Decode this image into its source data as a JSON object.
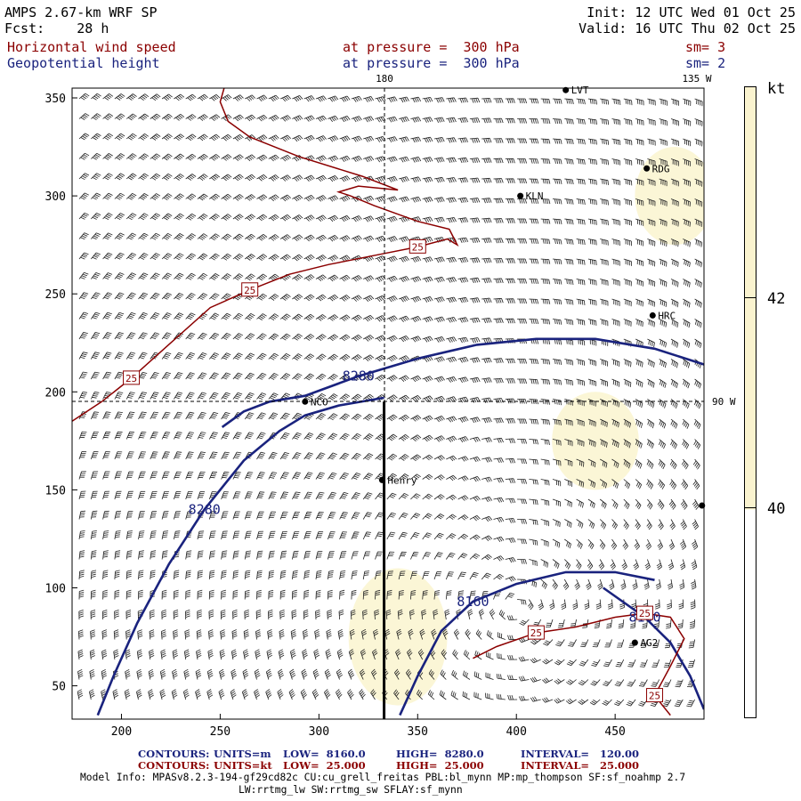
{
  "header": {
    "model": "AMPS 2.67-km WRF SP",
    "forecast": "Fcst:    28 h",
    "init": "Init: 12 UTC Wed 01 Oct 25",
    "valid": "Valid: 16 UTC Thu 02 Oct 25",
    "field1": "Horizontal wind speed",
    "field1_level": "at pressure =  300 hPa",
    "field1_sm": "sm= 3",
    "field2": "Geopotential height",
    "field2_level": "at pressure =  300 hPa",
    "field2_sm": "sm= 2"
  },
  "colors": {
    "wind_contour": "#8b0000",
    "height_contour": "#1a237e",
    "shade": "#fbf6d6",
    "colorbar_fill": "#faf3cf"
  },
  "chart_data": {
    "type": "contour",
    "xlim": [
      175,
      495
    ],
    "ylim": [
      33,
      355
    ],
    "x_ticks": [
      200,
      250,
      300,
      350,
      400,
      450
    ],
    "y_ticks": [
      50,
      100,
      150,
      200,
      250,
      300,
      350
    ],
    "lon_labels": {
      "top_180": "180",
      "top_135w": "135 W",
      "right_90w": "90 W"
    },
    "colorbar": {
      "unit": "kt",
      "labels": [
        "42",
        "40"
      ]
    },
    "stations": [
      {
        "name": "LVT",
        "x": 425,
        "y": 354
      },
      {
        "name": "RDG",
        "x": 466,
        "y": 314
      },
      {
        "name": "KLN",
        "x": 402,
        "y": 300
      },
      {
        "name": "HRC",
        "x": 469,
        "y": 239
      },
      {
        "name": "NCO",
        "x": 293,
        "y": 195
      },
      {
        "name": "Henry",
        "x": 332,
        "y": 155
      },
      {
        "name": "AG2",
        "x": 460,
        "y": 72
      },
      {
        "name": "",
        "x": 494,
        "y": 142
      }
    ],
    "section_line": {
      "x": [
        333,
        333
      ],
      "y": [
        195,
        33
      ]
    },
    "height_contours": [
      {
        "level": 8280,
        "label": "8280",
        "points": [
          [
            251,
            182
          ],
          [
            262,
            190
          ],
          [
            275,
            195
          ],
          [
            293,
            198
          ],
          [
            320,
            208
          ],
          [
            350,
            217
          ],
          [
            380,
            224
          ],
          [
            410,
            227
          ],
          [
            440,
            227
          ],
          [
            470,
            222
          ],
          [
            495,
            214
          ]
        ]
      },
      {
        "level": 8280,
        "label": "8280",
        "points": [
          [
            188,
            35
          ],
          [
            196,
            55
          ],
          [
            208,
            82
          ],
          [
            224,
            112
          ],
          [
            242,
            140
          ],
          [
            262,
            165
          ],
          [
            280,
            180
          ],
          [
            293,
            188
          ],
          [
            310,
            193
          ],
          [
            333,
            197
          ]
        ]
      },
      {
        "level": 8160,
        "label": "8160",
        "points": [
          [
            341,
            35
          ],
          [
            350,
            55
          ],
          [
            362,
            78
          ],
          [
            378,
            93
          ],
          [
            400,
            102
          ],
          [
            425,
            108
          ],
          [
            450,
            108
          ],
          [
            470,
            104
          ]
        ]
      },
      {
        "level": 8160,
        "label": "8160",
        "points": [
          [
            444,
            100
          ],
          [
            465,
            85
          ],
          [
            478,
            72
          ],
          [
            488,
            55
          ],
          [
            495,
            38
          ]
        ]
      }
    ],
    "wind_contours": [
      {
        "level": 25,
        "label": "25",
        "points": [
          [
            175,
            185
          ],
          [
            190,
            195
          ],
          [
            205,
            207
          ],
          [
            225,
            225
          ],
          [
            245,
            243
          ],
          [
            265,
            252
          ],
          [
            285,
            260
          ],
          [
            305,
            265
          ],
          [
            330,
            270
          ],
          [
            350,
            274
          ],
          [
            365,
            278
          ],
          [
            370,
            275
          ],
          [
            366,
            283
          ],
          [
            350,
            287
          ],
          [
            328,
            295
          ],
          [
            316,
            300
          ],
          [
            310,
            302
          ],
          [
            320,
            305
          ],
          [
            340,
            303
          ],
          [
            322,
            310
          ],
          [
            290,
            320
          ],
          [
            265,
            330
          ],
          [
            254,
            338
          ],
          [
            250,
            348
          ],
          [
            252,
            355
          ]
        ]
      },
      {
        "level": 25,
        "label": "25",
        "points": [
          [
            378,
            64
          ],
          [
            390,
            70
          ],
          [
            410,
            77
          ],
          [
            430,
            80
          ],
          [
            450,
            85
          ],
          [
            465,
            87
          ],
          [
            478,
            85
          ],
          [
            485,
            74
          ],
          [
            478,
            60
          ],
          [
            470,
            45
          ],
          [
            478,
            35
          ]
        ]
      }
    ],
    "shaded_regions": [
      {
        "level": 40,
        "center": [
          340,
          75
        ],
        "radius": [
          25,
          35
        ]
      },
      {
        "level": 40,
        "center": [
          440,
          175
        ],
        "radius": [
          22,
          25
        ]
      },
      {
        "level": 40,
        "center": [
          480,
          300
        ],
        "radius": [
          20,
          25
        ]
      }
    ],
    "legend": {
      "line1": {
        "contours": "CONTOURS:",
        "units": "UNITS=m",
        "low": "LOW=  8160.0",
        "high": "HIGH=  8280.0",
        "interval": "INTERVAL=   120.00"
      },
      "line2": {
        "contours": "CONTOURS:",
        "units": "UNITS=kt",
        "low": "LOW=  25.000",
        "high": "HIGH=  25.000",
        "interval": "INTERVAL=   25.000"
      }
    },
    "model_info": {
      "line1": "Model Info: MPASv8.2.3-194-gf29cd82c CU:cu_grell_freitas PBL:bl_mynn MP:mp_thompson SF:sf_noahmp 2.7",
      "line2": "LW:rrtmg_lw SW:rrtmg_sw SFLAY:sf_mynn"
    }
  }
}
